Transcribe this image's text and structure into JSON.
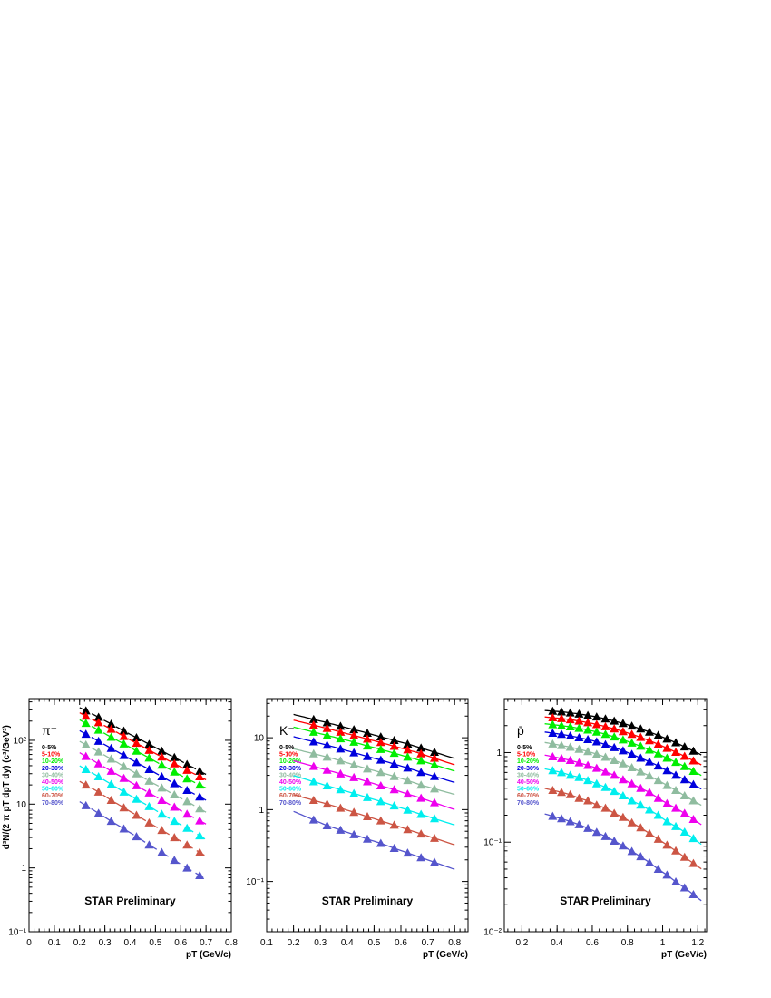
{
  "figure": {
    "ylabel": "d²N/(2 π pT dpT dy) (c²/GeV²)",
    "watermark": "STAR Preliminary"
  },
  "centralities": [
    {
      "label": "0-5%",
      "color": "#000000"
    },
    {
      "label": "5-10%",
      "color": "#ff0000"
    },
    {
      "label": "10-20%",
      "color": "#00ee00"
    },
    {
      "label": "20-30%",
      "color": "#0000dd"
    },
    {
      "label": "30-40%",
      "color": "#8fbc9f"
    },
    {
      "label": "40-50%",
      "color": "#ee00ee"
    },
    {
      "label": "50-60%",
      "color": "#00eeee"
    },
    {
      "label": "60-70%",
      "color": "#cc5544"
    },
    {
      "label": "70-80%",
      "color": "#5555cc"
    }
  ],
  "chart_data": [
    {
      "type": "scatter",
      "particle": "π⁻",
      "title": "",
      "xlabel": "pT (GeV/c)",
      "ylabel": "d²N/(2 π pT dpT dy) (c²/GeV²)",
      "yscale": "log",
      "xlim": [
        0,
        0.8
      ],
      "ylim": [
        0.1,
        450
      ],
      "xticks": [
        0,
        0.1,
        0.2,
        0.3,
        0.4,
        0.5,
        0.6,
        0.7,
        0.8
      ],
      "yticks": [
        {
          "v": 0.1,
          "label": "10⁻¹"
        },
        {
          "v": 1,
          "label": "1"
        },
        {
          "v": 10,
          "label": "10"
        },
        {
          "v": 100,
          "label": "10²"
        }
      ],
      "x": [
        0.225,
        0.275,
        0.325,
        0.375,
        0.425,
        0.475,
        0.525,
        0.575,
        0.625,
        0.675
      ],
      "series": [
        {
          "name": "0-5%",
          "values": [
            290,
            230,
            180,
            140,
            110,
            87,
            68,
            54,
            42,
            33
          ]
        },
        {
          "name": "5-10%",
          "values": [
            240,
            190,
            150,
            115,
            90,
            70,
            55,
            43,
            34,
            27
          ]
        },
        {
          "name": "10-20%",
          "values": [
            185,
            145,
            112,
            88,
            68,
            53,
            41,
            32,
            25,
            20
          ]
        },
        {
          "name": "20-30%",
          "values": [
            125,
            97,
            75,
            58,
            45,
            35,
            27,
            21,
            16.5,
            13
          ]
        },
        {
          "name": "30-40%",
          "values": [
            85,
            66,
            51,
            39,
            30,
            23,
            18,
            14,
            11,
            8.5
          ]
        },
        {
          "name": "40-50%",
          "values": [
            56,
            43,
            33,
            25.5,
            19.5,
            15,
            11.5,
            9,
            7,
            5.5
          ]
        },
        {
          "name": "50-60%",
          "values": [
            35,
            27,
            20.5,
            15.5,
            12,
            9.2,
            7,
            5.4,
            4.2,
            3.2
          ]
        },
        {
          "name": "60-70%",
          "values": [
            20,
            15.5,
            11.5,
            8.8,
            6.7,
            5.1,
            3.9,
            3,
            2.3,
            1.75
          ]
        },
        {
          "name": "70-80%",
          "values": [
            9.5,
            7.2,
            5.4,
            4.1,
            3.1,
            2.3,
            1.75,
            1.32,
            1,
            0.76
          ]
        }
      ],
      "fit_x": [
        0.2,
        0.7
      ],
      "fit_dashed": true
    },
    {
      "type": "scatter",
      "particle": "K⁻",
      "title": "",
      "xlabel": "pT (GeV/c)",
      "ylabel": "",
      "yscale": "log",
      "xlim": [
        0.1,
        0.85
      ],
      "ylim": [
        0.02,
        35
      ],
      "xticks": [
        0.1,
        0.2,
        0.3,
        0.4,
        0.5,
        0.6,
        0.7,
        0.8
      ],
      "yticks": [
        {
          "v": 0.1,
          "label": "10⁻¹"
        },
        {
          "v": 1,
          "label": "1"
        },
        {
          "v": 10,
          "label": "10"
        }
      ],
      "x": [
        0.275,
        0.325,
        0.375,
        0.425,
        0.475,
        0.525,
        0.575,
        0.625,
        0.675,
        0.725
      ],
      "series": [
        {
          "name": "0-5%",
          "values": [
            18,
            16.2,
            14.5,
            13,
            11.6,
            10.3,
            9.2,
            8.2,
            7.2,
            6.3
          ]
        },
        {
          "name": "5-10%",
          "values": [
            15,
            13.5,
            12,
            10.8,
            9.6,
            8.6,
            7.6,
            6.8,
            6,
            5.2
          ]
        },
        {
          "name": "10-20%",
          "values": [
            12,
            10.8,
            9.7,
            8.7,
            7.7,
            6.9,
            6.1,
            5.4,
            4.8,
            4.2
          ]
        },
        {
          "name": "20-30%",
          "values": [
            8.8,
            7.9,
            7,
            6.2,
            5.5,
            4.9,
            4.3,
            3.8,
            3.3,
            2.9
          ]
        },
        {
          "name": "30-40%",
          "values": [
            6,
            5.4,
            4.8,
            4.2,
            3.7,
            3.3,
            2.9,
            2.55,
            2.2,
            1.95
          ]
        },
        {
          "name": "40-50%",
          "values": [
            4,
            3.55,
            3.15,
            2.8,
            2.45,
            2.15,
            1.9,
            1.65,
            1.45,
            1.25
          ]
        },
        {
          "name": "50-60%",
          "values": [
            2.45,
            2.15,
            1.9,
            1.68,
            1.48,
            1.3,
            1.13,
            0.99,
            0.86,
            0.75
          ]
        },
        {
          "name": "60-70%",
          "values": [
            1.35,
            1.2,
            1.05,
            0.92,
            0.8,
            0.7,
            0.61,
            0.53,
            0.46,
            0.4
          ]
        },
        {
          "name": "70-80%",
          "values": [
            0.72,
            0.6,
            0.52,
            0.45,
            0.39,
            0.34,
            0.29,
            0.25,
            0.215,
            0.185
          ]
        }
      ],
      "fit_x": [
        0.2,
        0.8
      ],
      "fit_dashed": false
    },
    {
      "type": "scatter",
      "particle": "p̄",
      "title": "",
      "xlabel": "pT (GeV/c)",
      "ylabel": "",
      "yscale": "log",
      "xlim": [
        0.1,
        1.25
      ],
      "ylim": [
        0.01,
        4
      ],
      "xticks": [
        0.2,
        0.4,
        0.6,
        0.8,
        1,
        1.2
      ],
      "yticks": [
        {
          "v": 0.01,
          "label": "10⁻²"
        },
        {
          "v": 0.1,
          "label": "10⁻¹"
        },
        {
          "v": 1,
          "label": "1"
        }
      ],
      "x": [
        0.375,
        0.425,
        0.475,
        0.525,
        0.575,
        0.625,
        0.675,
        0.725,
        0.775,
        0.825,
        0.875,
        0.925,
        0.975,
        1.025,
        1.075,
        1.125,
        1.175
      ],
      "series": [
        {
          "name": "0-5%",
          "values": [
            2.9,
            2.85,
            2.78,
            2.7,
            2.6,
            2.5,
            2.38,
            2.25,
            2.12,
            1.98,
            1.84,
            1.7,
            1.56,
            1.42,
            1.29,
            1.16,
            1.04
          ]
        },
        {
          "name": "5-10%",
          "values": [
            2.45,
            2.4,
            2.33,
            2.25,
            2.16,
            2.06,
            1.95,
            1.84,
            1.72,
            1.6,
            1.48,
            1.36,
            1.24,
            1.12,
            1.01,
            0.91,
            0.81
          ]
        },
        {
          "name": "10-20%",
          "values": [
            2.05,
            2,
            1.94,
            1.87,
            1.79,
            1.7,
            1.6,
            1.5,
            1.39,
            1.28,
            1.18,
            1.07,
            0.97,
            0.87,
            0.78,
            0.7,
            0.62
          ]
        },
        {
          "name": "20-30%",
          "values": [
            1.65,
            1.6,
            1.54,
            1.47,
            1.4,
            1.32,
            1.23,
            1.14,
            1.05,
            0.96,
            0.87,
            0.79,
            0.71,
            0.63,
            0.56,
            0.5,
            0.44
          ]
        },
        {
          "name": "30-40%",
          "values": [
            1.25,
            1.2,
            1.15,
            1.09,
            1.03,
            0.96,
            0.89,
            0.82,
            0.75,
            0.68,
            0.61,
            0.55,
            0.49,
            0.43,
            0.38,
            0.33,
            0.29
          ]
        },
        {
          "name": "40-50%",
          "values": [
            0.9,
            0.86,
            0.82,
            0.77,
            0.72,
            0.67,
            0.61,
            0.56,
            0.5,
            0.45,
            0.4,
            0.36,
            0.31,
            0.27,
            0.24,
            0.21,
            0.18
          ]
        },
        {
          "name": "50-60%",
          "values": [
            0.63,
            0.6,
            0.56,
            0.53,
            0.49,
            0.45,
            0.41,
            0.37,
            0.33,
            0.29,
            0.26,
            0.23,
            0.2,
            0.17,
            0.15,
            0.13,
            0.11
          ]
        },
        {
          "name": "60-70%",
          "values": [
            0.38,
            0.36,
            0.34,
            0.31,
            0.29,
            0.26,
            0.24,
            0.21,
            0.19,
            0.165,
            0.145,
            0.125,
            0.108,
            0.093,
            0.08,
            0.068,
            0.058
          ]
        },
        {
          "name": "70-80%",
          "values": [
            0.195,
            0.183,
            0.17,
            0.157,
            0.143,
            0.129,
            0.116,
            0.103,
            0.091,
            0.079,
            0.069,
            0.059,
            0.05,
            0.043,
            0.036,
            0.031,
            0.026
          ]
        }
      ],
      "fit_x": [
        0.33,
        1.22
      ],
      "fit_dashed": false
    }
  ]
}
